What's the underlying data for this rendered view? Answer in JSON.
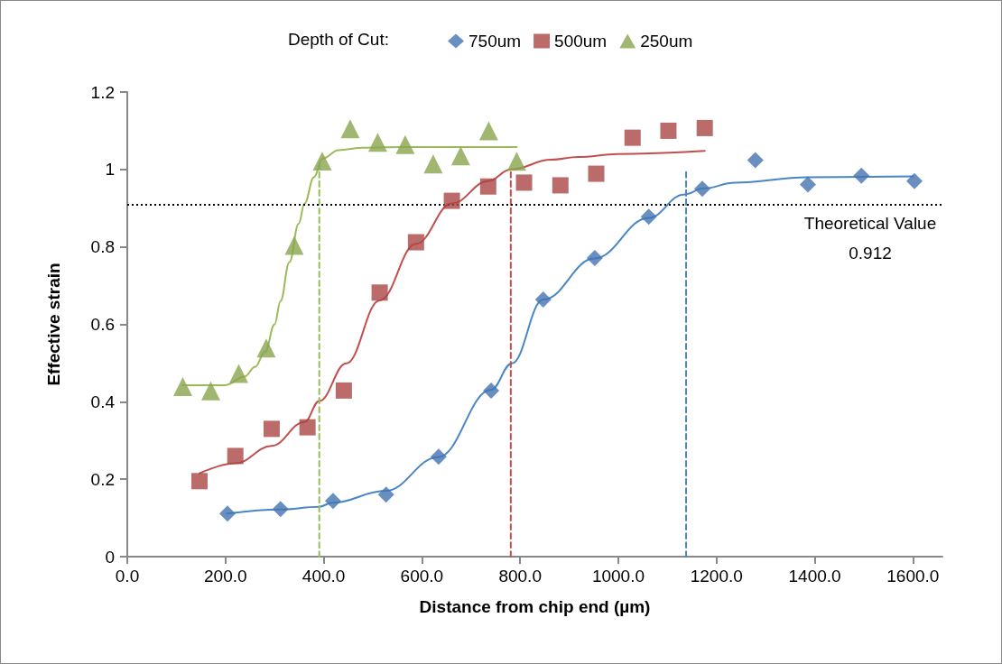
{
  "chart_data": {
    "type": "scatter",
    "xlabel": "Distance from chip end (µm)",
    "ylabel": "Effective strain",
    "legend_title": "Depth of Cut:",
    "legend": "top",
    "grid": false,
    "xlim": [
      0,
      1660
    ],
    "xticks": [
      {
        "value": 0,
        "label": "0.0"
      },
      {
        "value": 200,
        "label": "200.0"
      },
      {
        "value": 400,
        "label": "400.0"
      },
      {
        "value": 600,
        "label": "600.0"
      },
      {
        "value": 800,
        "label": "800.0"
      },
      {
        "value": 1000,
        "label": "1000.0"
      },
      {
        "value": 1200,
        "label": "1200.0"
      },
      {
        "value": 1400,
        "label": "1400.0"
      },
      {
        "value": 1600,
        "label": "1600.0"
      }
    ],
    "ylim": [
      0,
      1.2
    ],
    "yticks": [
      0,
      0.2,
      0.4,
      0.6,
      0.8,
      1,
      1.2
    ],
    "ref_lines": [
      {
        "axis": "y",
        "value": 0.912,
        "label": "Theoretical Value\n0.912",
        "color": "#000000",
        "line_style": "dotted"
      }
    ],
    "series": [
      {
        "name": "750um",
        "marker": "diamond",
        "color": "#4473b0",
        "x": [
          204,
          312,
          419,
          527,
          634,
          741,
          847,
          952,
          1062,
          1171,
          1279,
          1386,
          1495,
          1603
        ],
        "values": [
          0.111,
          0.123,
          0.144,
          0.16,
          0.258,
          0.429,
          0.664,
          0.771,
          0.878,
          0.95,
          1.024,
          0.961,
          0.984,
          0.97
        ]
      },
      {
        "name": "500um",
        "marker": "square",
        "color": "#aa4643",
        "x": [
          147,
          220,
          294,
          367,
          441,
          514,
          588,
          661,
          735,
          808,
          882,
          955,
          1029,
          1102,
          1176
        ],
        "values": [
          0.195,
          0.26,
          0.33,
          0.334,
          0.429,
          0.682,
          0.812,
          0.919,
          0.956,
          0.966,
          0.959,
          0.989,
          1.082,
          1.1,
          1.107
        ]
      },
      {
        "name": "250um",
        "marker": "triangle",
        "color": "#89a54e",
        "x": [
          113,
          170,
          227,
          283,
          340,
          397,
          454,
          510,
          566,
          623,
          679,
          736,
          793
        ],
        "values": [
          0.439,
          0.428,
          0.473,
          0.539,
          0.804,
          1.022,
          1.105,
          1.07,
          1.064,
          1.014,
          1.035,
          1.1,
          1.021
        ]
      },
      {
        "type": "line",
        "marker": "none",
        "line_style": "solid",
        "color": "#4a86c5",
        "x": [
          203,
          312,
          391,
          417,
          526,
          633,
          741,
          783,
          847,
          951,
          1062,
          1133,
          1174,
          1237,
          1385,
          1600
        ],
        "values": [
          0.111,
          0.122,
          0.129,
          0.139,
          0.17,
          0.257,
          0.431,
          0.499,
          0.664,
          0.77,
          0.875,
          0.935,
          0.951,
          0.966,
          0.98,
          0.982
        ]
      },
      {
        "type": "line",
        "marker": "none",
        "line_style": "solid",
        "color": "#c0504d",
        "x": [
          147,
          220,
          294,
          361,
          391,
          446,
          514,
          588,
          661,
          735,
          781,
          863,
          918,
          999,
          1176
        ],
        "values": [
          0.215,
          0.241,
          0.286,
          0.348,
          0.402,
          0.499,
          0.662,
          0.808,
          0.912,
          0.97,
          1.0,
          1.025,
          1.032,
          1.04,
          1.048
        ]
      },
      {
        "type": "line",
        "marker": "none",
        "line_style": "solid",
        "color": "#9bbb59",
        "x": [
          113,
          200,
          239,
          260,
          281,
          300,
          312,
          330,
          349,
          361,
          380,
          398,
          430,
          480,
          560,
          793
        ],
        "values": [
          0.443,
          0.443,
          0.465,
          0.49,
          0.53,
          0.6,
          0.66,
          0.76,
          0.86,
          0.912,
          0.98,
          1.028,
          1.05,
          1.056,
          1.058,
          1.058
        ]
      },
      {
        "type": "line",
        "marker": "none",
        "line_style": "dashed",
        "color": "#9bbb59",
        "x": [
          391,
          391
        ],
        "values": [
          0,
          1.022
        ]
      },
      {
        "type": "line",
        "marker": "none",
        "line_style": "dashed",
        "color": "#c0504d",
        "x": [
          781,
          781
        ],
        "values": [
          0,
          1.0
        ]
      },
      {
        "type": "line",
        "marker": "none",
        "line_style": "dashed",
        "color": "#4a86c5",
        "x": [
          1138,
          1138
        ],
        "values": [
          0,
          1.0
        ]
      }
    ]
  }
}
